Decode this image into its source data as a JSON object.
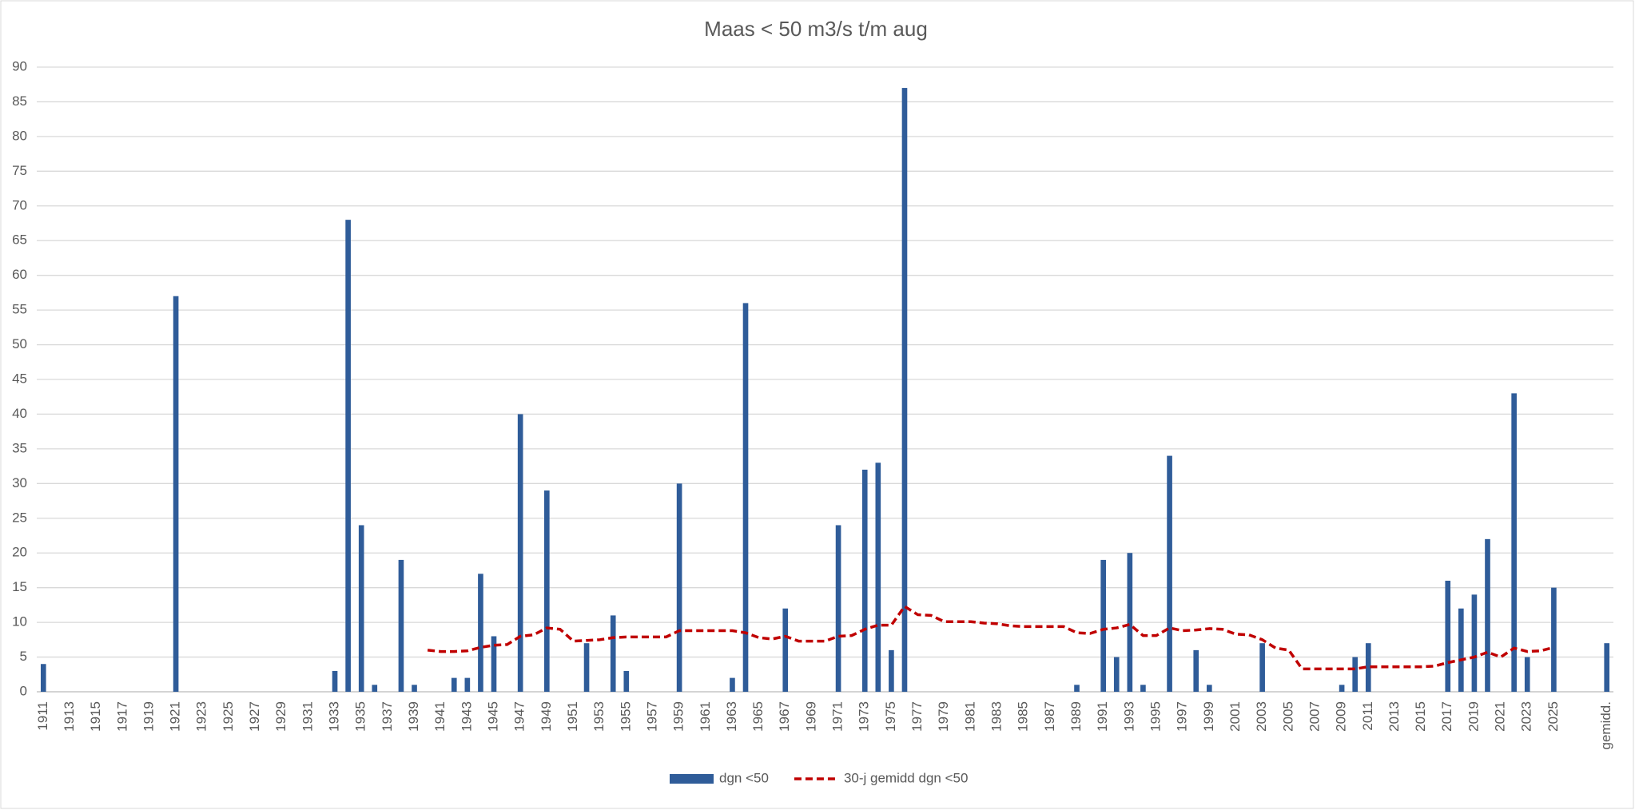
{
  "chart_data": {
    "type": "bar",
    "title": "Maas < 50 m3/s t/m aug",
    "categories": [
      "1911",
      null,
      "1913",
      null,
      "1915",
      null,
      "1917",
      null,
      "1919",
      null,
      "1921",
      null,
      "1923",
      null,
      "1925",
      null,
      "1927",
      null,
      "1929",
      null,
      "1931",
      null,
      "1933",
      null,
      "1935",
      null,
      "1937",
      null,
      "1939",
      null,
      "1941",
      null,
      "1943",
      null,
      "1945",
      null,
      "1947",
      null,
      "1949",
      null,
      "1951",
      null,
      "1953",
      null,
      "1955",
      null,
      "1957",
      null,
      "1959",
      null,
      "1961",
      null,
      "1963",
      null,
      "1965",
      null,
      "1967",
      null,
      "1969",
      null,
      "1971",
      null,
      "1973",
      null,
      "1975",
      null,
      "1977",
      null,
      "1979",
      null,
      "1981",
      null,
      "1983",
      null,
      "1985",
      null,
      "1987",
      null,
      "1989",
      null,
      "1991",
      null,
      "1993",
      null,
      "1995",
      null,
      "1997",
      null,
      "1999",
      null,
      "2001",
      null,
      "2003",
      null,
      "2005",
      null,
      "2007",
      null,
      "2009",
      null,
      "2011",
      null,
      "2013",
      null,
      "2015",
      null,
      "2017",
      null,
      "2019",
      null,
      "2021",
      null,
      "2023",
      null,
      "2025",
      null,
      null,
      null,
      "gemidd."
    ],
    "series": [
      {
        "name": "dgn <50",
        "type": "bar",
        "color": "#2f5c99",
        "values": [
          4,
          0,
          0,
          0,
          0,
          0,
          0,
          0,
          0,
          0,
          57,
          0,
          0,
          0,
          0,
          0,
          0,
          0,
          0,
          0,
          0,
          0,
          3,
          68,
          24,
          1,
          0,
          19,
          1,
          0,
          0,
          2,
          2,
          17,
          8,
          0,
          40,
          0,
          29,
          0,
          0,
          7,
          0,
          11,
          3,
          0,
          0,
          0,
          30,
          0,
          0,
          0,
          2,
          56,
          0,
          0,
          12,
          0,
          0,
          0,
          24,
          0,
          32,
          33,
          6,
          87,
          0,
          0,
          0,
          0,
          0,
          0,
          0,
          0,
          0,
          0,
          0,
          0,
          1,
          0,
          19,
          5,
          20,
          1,
          0,
          34,
          0,
          6,
          1,
          0,
          0,
          0,
          7,
          0,
          0,
          0,
          0,
          0,
          1,
          5,
          7,
          0,
          0,
          0,
          0,
          0,
          16,
          12,
          14,
          22,
          0,
          43,
          5,
          0,
          15,
          null,
          null,
          null,
          7
        ]
      },
      {
        "name": "30-j gemidd dgn <50",
        "type": "line",
        "color": "#c00000",
        "dashed": true,
        "values": [
          null,
          null,
          null,
          null,
          null,
          null,
          null,
          null,
          null,
          null,
          null,
          null,
          null,
          null,
          null,
          null,
          null,
          null,
          null,
          null,
          null,
          null,
          null,
          null,
          null,
          null,
          null,
          null,
          null,
          6,
          5.8,
          5.8,
          5.9,
          6.4,
          6.7,
          6.8,
          8,
          8.2,
          9.2,
          9,
          7.3,
          7.4,
          7.5,
          7.8,
          7.9,
          7.9,
          7.9,
          7.9,
          8.8,
          8.8,
          8.8,
          8.8,
          8.8,
          8.5,
          7.8,
          7.6,
          8,
          7.3,
          7.3,
          7.3,
          8,
          8.1,
          9,
          9.6,
          9.6,
          12.3,
          11.1,
          11,
          10.1,
          10.1,
          10.1,
          9.9,
          9.8,
          9.5,
          9.4,
          9.4,
          9.4,
          9.4,
          8.5,
          8.4,
          9,
          9.2,
          9.7,
          8.1,
          8.1,
          9.2,
          8.8,
          8.9,
          9.1,
          9,
          8.3,
          8.2,
          7.5,
          6.3,
          6,
          3.3,
          3.3,
          3.3,
          3.3,
          3.3,
          3.6,
          3.6,
          3.6,
          3.6,
          3.6,
          3.7,
          4.2,
          4.6,
          5,
          5.7,
          5,
          6.3,
          5.8,
          5.9,
          6.4,
          null,
          null,
          null,
          null
        ]
      }
    ],
    "ylim": [
      0,
      90
    ],
    "yticks": [
      0,
      5,
      10,
      15,
      20,
      25,
      30,
      35,
      40,
      45,
      50,
      55,
      60,
      65,
      70,
      75,
      80,
      85,
      90
    ],
    "grid": true,
    "legend": "bottom"
  }
}
